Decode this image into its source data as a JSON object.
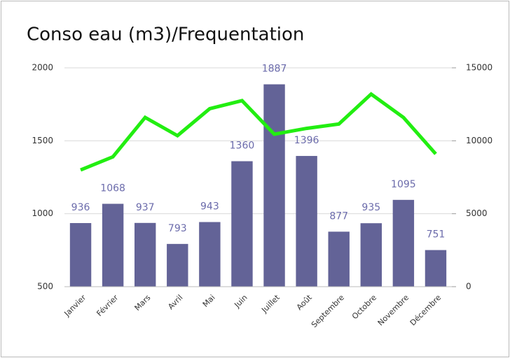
{
  "chart_data": {
    "type": "bar",
    "title": "Conso eau (m3)/Frequentation",
    "categories": [
      "Janvier",
      "Février",
      "Mars",
      "Avril",
      "Mai",
      "Juin",
      "Juillet",
      "Août",
      "Septembre",
      "Octobre",
      "Novembre",
      "Décembre"
    ],
    "series": [
      {
        "type": "bar",
        "color": "#636397",
        "values": [
          936,
          1068,
          937,
          793,
          943,
          1360,
          1887,
          1396,
          877,
          935,
          1095,
          751
        ]
      },
      {
        "type": "line",
        "axis": "y2",
        "color": "#22ee11",
        "values": [
          8000,
          8900,
          11600,
          10350,
          12200,
          12750,
          10450,
          10850,
          11150,
          13200,
          11600,
          9100
        ]
      }
    ],
    "ylim": [
      500,
      2000
    ],
    "yticks": [
      500,
      1000,
      1500,
      2000
    ],
    "y2lim": [
      0,
      15000
    ],
    "y2ticks": [
      0,
      5000,
      10000,
      15000
    ],
    "grid": true
  }
}
